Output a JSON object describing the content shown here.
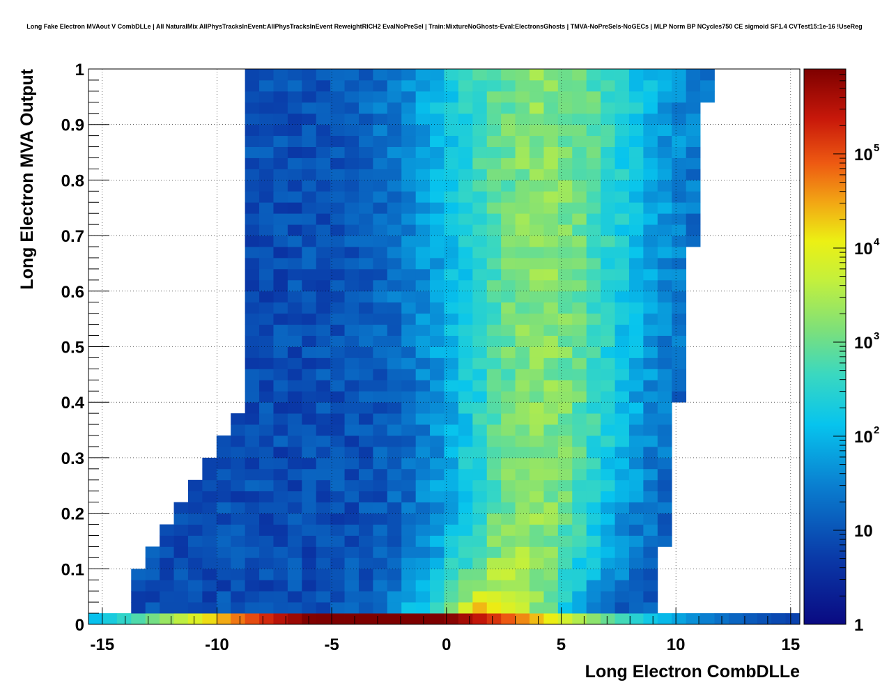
{
  "chart_data": {
    "type": "heatmap",
    "title": "Long Fake Electron MVAout V CombDLLe | All NaturalMix AllPhysTracksInEvent:AllPhysTracksInEvent ReweightRICH2 EvalNoPreSel | Train:MixtureNoGhosts-Eval:ElectronsGhosts | TMVA-NoPreSels-NoGECs | MLP Norm BP NCycles750 CE sigmoid SF1.4 CVTest15:1e-16 !UseReg",
    "xlabel": "Long Electron CombDLLe",
    "ylabel": "Long Electron MVA Output",
    "xlim": [
      -15.6,
      15.4
    ],
    "ylim": [
      0,
      1
    ],
    "x_ticks": [
      "-15",
      "-10",
      "-5",
      "0",
      "5",
      "10",
      "15"
    ],
    "x_tick_values": [
      -15,
      -10,
      -5,
      0,
      5,
      10,
      15
    ],
    "y_ticks": [
      "0",
      "0.1",
      "0.2",
      "0.3",
      "0.4",
      "0.5",
      "0.6",
      "0.7",
      "0.8",
      "0.9",
      "1"
    ],
    "y_tick_values": [
      0,
      0.1,
      0.2,
      0.3,
      0.4,
      0.5,
      0.6,
      0.7,
      0.8,
      0.9,
      1
    ],
    "grid": true,
    "z_scale": "log",
    "z_range": [
      1,
      800000
    ],
    "colorbar_ticks": [
      {
        "base": "1",
        "exp": "",
        "value": 1
      },
      {
        "base": "10",
        "exp": "",
        "value": 10
      },
      {
        "base": "10",
        "exp": "2",
        "value": 100
      },
      {
        "base": "10",
        "exp": "3",
        "value": 1000
      },
      {
        "base": "10",
        "exp": "4",
        "value": 10000
      },
      {
        "base": "10",
        "exp": "5",
        "value": 100000
      }
    ],
    "bins": {
      "nx": 50,
      "ny": 50,
      "x_bin_width": 0.62,
      "y_bin_width": 0.02
    }
  }
}
